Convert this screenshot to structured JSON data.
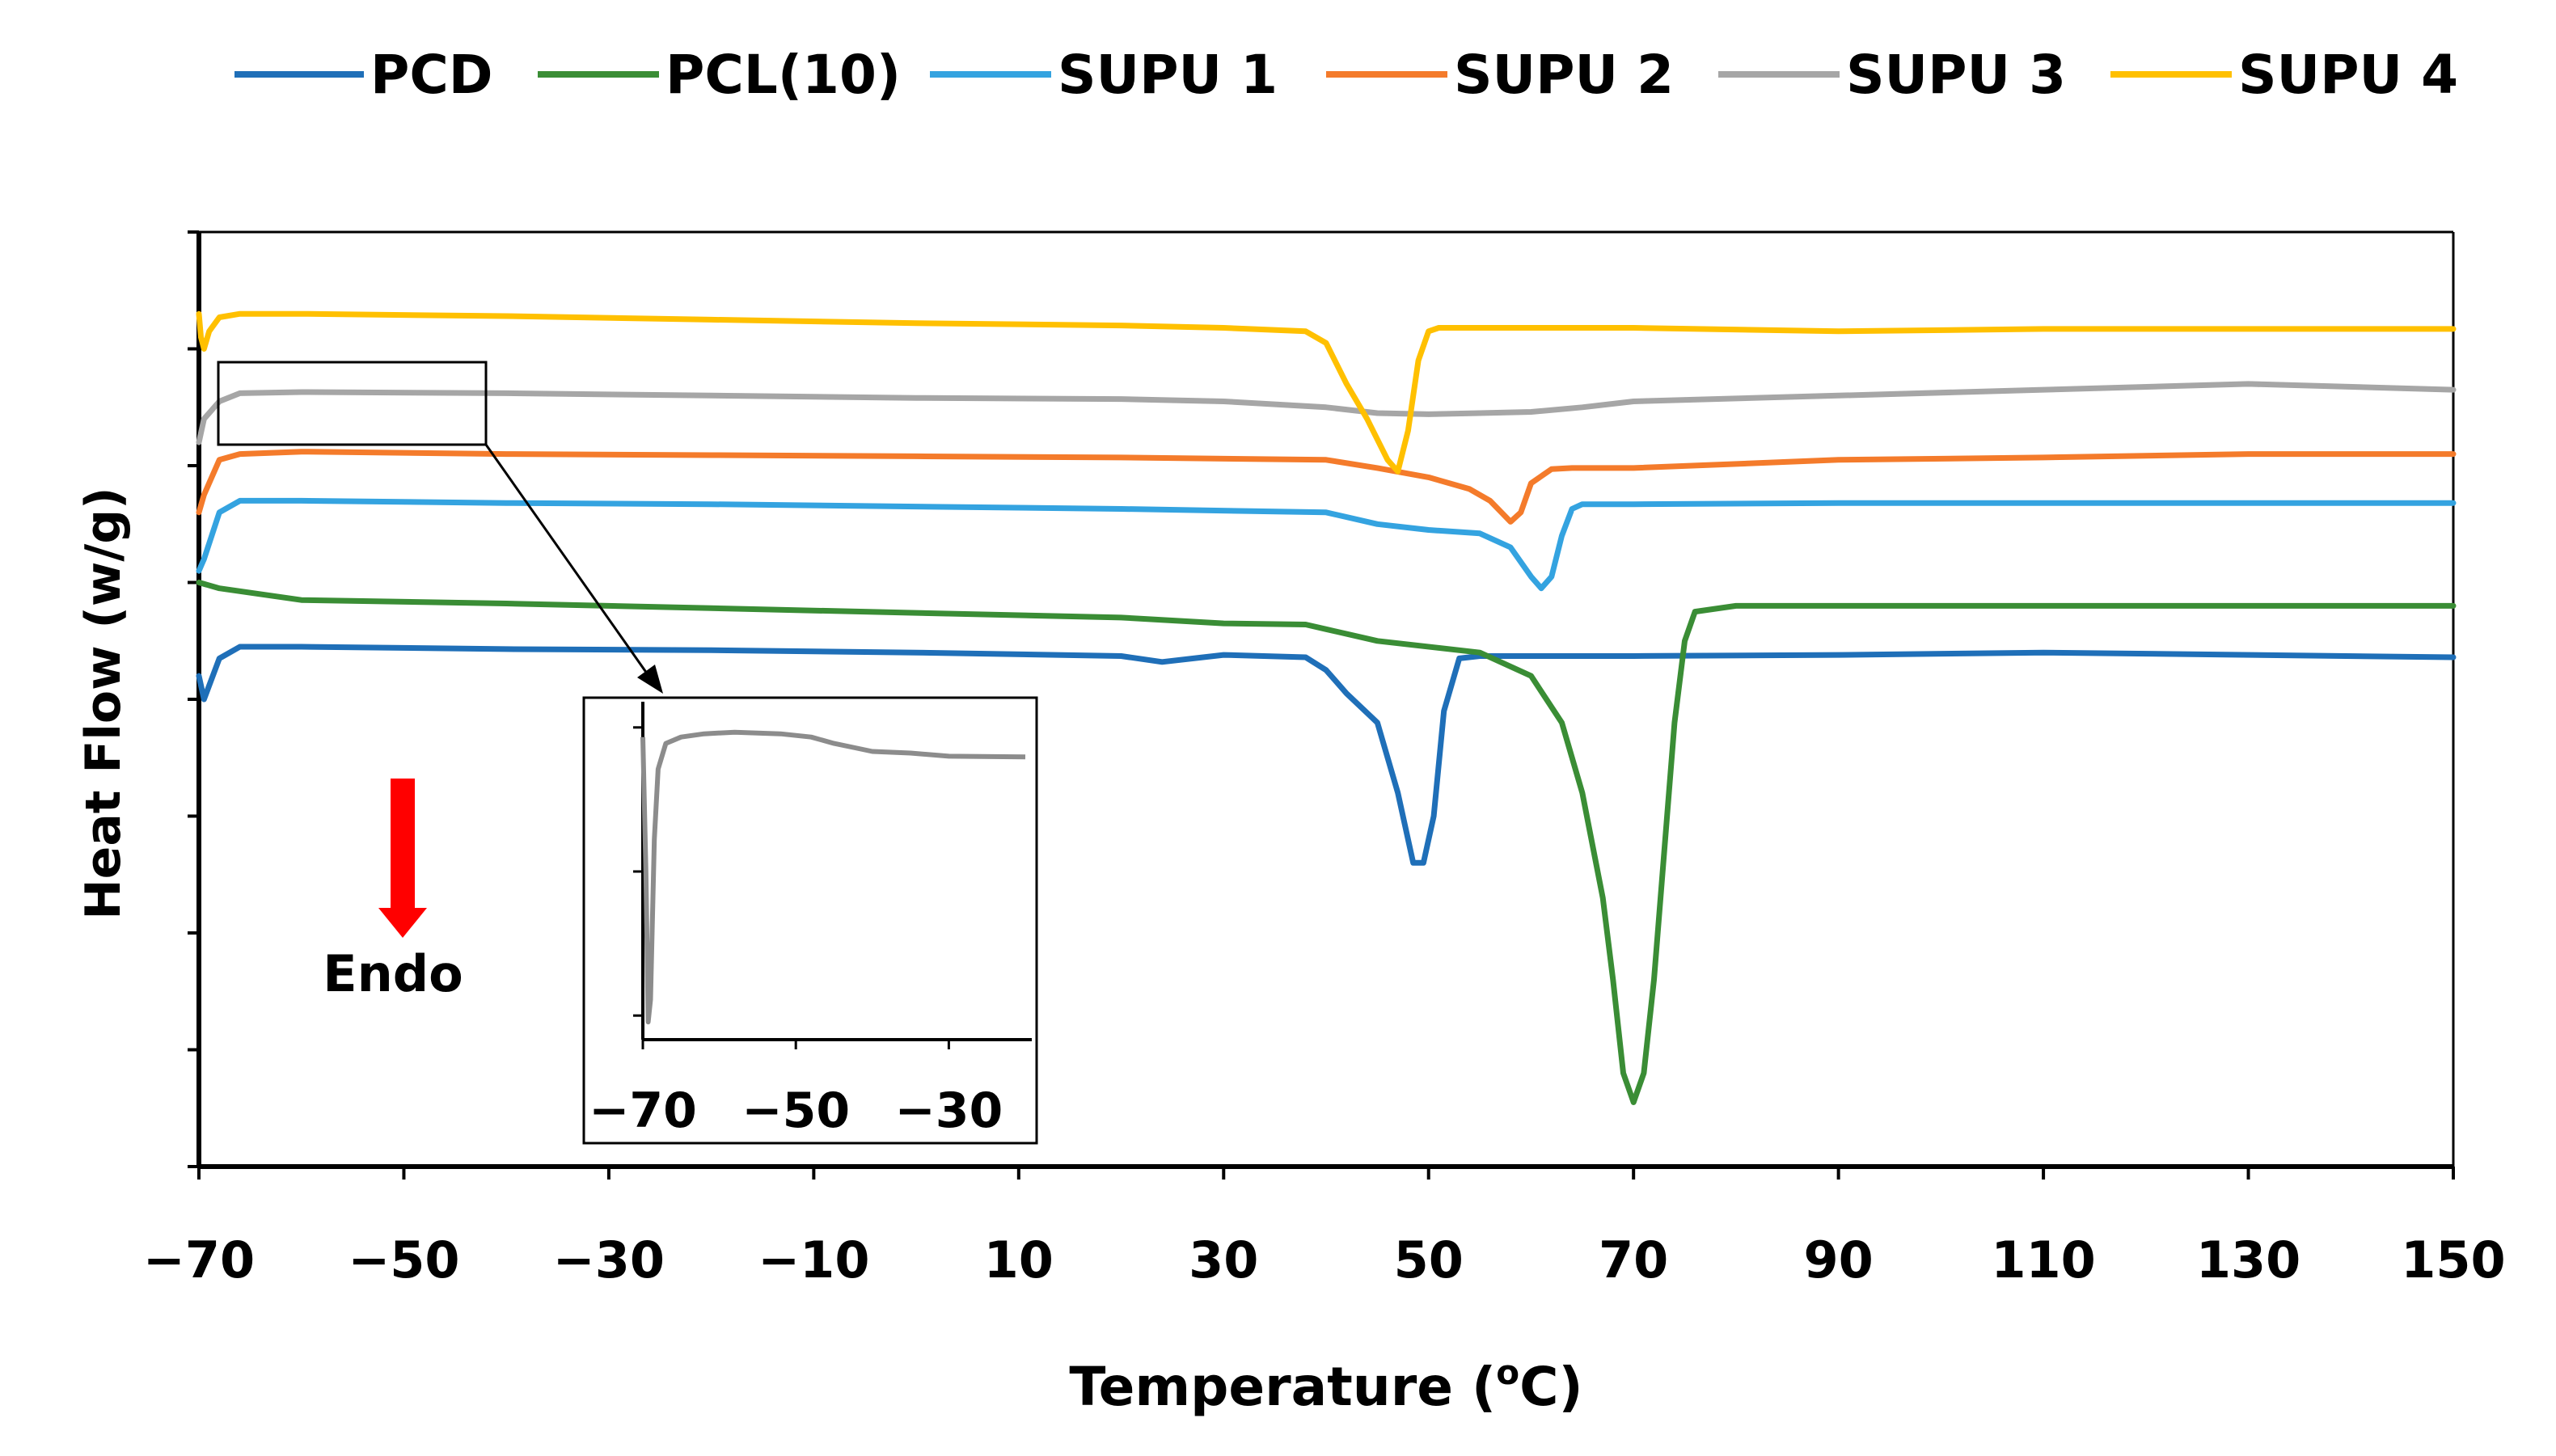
{
  "chart_data": {
    "type": "line",
    "title": "",
    "xlabel": "Temperature (",
    "xlabel_sup": "o",
    "xlabel_tail": "C)",
    "ylabel": "Heat Flow (w/g)",
    "xlim": [
      -70,
      150
    ],
    "ylim": [
      0,
      8
    ],
    "xticks": [
      -70,
      -50,
      -30,
      -10,
      10,
      30,
      50,
      70,
      90,
      110,
      130,
      150
    ],
    "xtick_labels": [
      "−70",
      "−50",
      "−30",
      "−10",
      "10",
      "30",
      "50",
      "70",
      "90",
      "110",
      "130",
      "150"
    ],
    "yticks": [
      0,
      1,
      2,
      3,
      4,
      5,
      6,
      7,
      8
    ],
    "grid": false,
    "legend_position": "top",
    "annotation": {
      "text": "Endo",
      "color": "#ff0000",
      "direction": "down"
    },
    "series": [
      {
        "name": "PCD",
        "color": "#1f6fb8",
        "x": [
          -70,
          -69.5,
          -68,
          -66,
          -60,
          -40,
          -20,
          0,
          20,
          24,
          28,
          30,
          38,
          40,
          42,
          45,
          47,
          48.5,
          49.5,
          50.5,
          51.5,
          53,
          55,
          70,
          90,
          110,
          150
        ],
        "y": [
          4.2,
          4.0,
          4.35,
          4.45,
          4.45,
          4.43,
          4.42,
          4.4,
          4.37,
          4.32,
          4.36,
          4.38,
          4.36,
          4.25,
          4.05,
          3.8,
          3.2,
          2.6,
          2.6,
          3.0,
          3.9,
          4.35,
          4.37,
          4.37,
          4.38,
          4.4,
          4.36
        ]
      },
      {
        "name": "PCL(10)",
        "color": "#3a8d35",
        "x": [
          -70,
          -68,
          -60,
          -40,
          -20,
          0,
          20,
          30,
          38,
          40,
          45,
          55,
          60,
          63,
          65,
          67,
          68,
          69,
          70,
          71,
          72,
          73,
          74,
          75,
          76,
          80,
          90,
          110,
          130,
          150
        ],
        "y": [
          5.0,
          4.95,
          4.85,
          4.82,
          4.78,
          4.74,
          4.7,
          4.65,
          4.64,
          4.6,
          4.5,
          4.4,
          4.2,
          3.8,
          3.2,
          2.3,
          1.6,
          0.8,
          0.55,
          0.8,
          1.6,
          2.7,
          3.8,
          4.5,
          4.75,
          4.8,
          4.8,
          4.8,
          4.8,
          4.8
        ]
      },
      {
        "name": "SUPU 1",
        "color": "#34a3e0",
        "x": [
          -70,
          -69.5,
          -68,
          -66,
          -60,
          -40,
          -20,
          0,
          20,
          40,
          45,
          50,
          55,
          58,
          60,
          61,
          62,
          63,
          64,
          65,
          70,
          90,
          110,
          130,
          150
        ],
        "y": [
          5.1,
          5.2,
          5.6,
          5.7,
          5.7,
          5.68,
          5.67,
          5.65,
          5.63,
          5.6,
          5.5,
          5.45,
          5.42,
          5.3,
          5.05,
          4.95,
          5.05,
          5.4,
          5.63,
          5.67,
          5.67,
          5.68,
          5.68,
          5.68,
          5.68
        ]
      },
      {
        "name": "SUPU 2",
        "color": "#f47b2b",
        "x": [
          -70,
          -69.5,
          -68,
          -66,
          -60,
          -40,
          -20,
          0,
          20,
          40,
          45,
          50,
          54,
          56,
          58,
          59,
          60,
          62,
          64,
          70,
          90,
          110,
          130,
          150
        ],
        "y": [
          5.6,
          5.75,
          6.05,
          6.1,
          6.12,
          6.1,
          6.09,
          6.08,
          6.07,
          6.05,
          5.98,
          5.9,
          5.8,
          5.7,
          5.52,
          5.6,
          5.85,
          5.97,
          5.98,
          5.98,
          6.05,
          6.07,
          6.1,
          6.1
        ]
      },
      {
        "name": "SUPU 3",
        "color": "#a6a6a6",
        "x": [
          -70,
          -69.5,
          -68,
          -66,
          -60,
          -40,
          -20,
          0,
          20,
          30,
          40,
          45,
          50,
          55,
          60,
          65,
          70,
          90,
          110,
          130,
          150
        ],
        "y": [
          6.2,
          6.4,
          6.55,
          6.62,
          6.63,
          6.62,
          6.6,
          6.58,
          6.57,
          6.55,
          6.5,
          6.45,
          6.44,
          6.45,
          6.46,
          6.5,
          6.55,
          6.6,
          6.65,
          6.7,
          6.65
        ]
      },
      {
        "name": "SUPU 4",
        "color": "#ffc000",
        "x": [
          -70,
          -69.8,
          -69.5,
          -69,
          -68,
          -66,
          -60,
          -40,
          -20,
          0,
          20,
          30,
          38,
          40,
          42,
          44,
          46,
          47,
          48,
          49,
          50,
          51,
          55,
          70,
          90,
          110,
          130,
          150
        ],
        "y": [
          7.3,
          7.1,
          7.0,
          7.15,
          7.27,
          7.3,
          7.3,
          7.28,
          7.25,
          7.22,
          7.2,
          7.18,
          7.15,
          7.05,
          6.7,
          6.4,
          6.05,
          5.95,
          6.3,
          6.9,
          7.15,
          7.18,
          7.18,
          7.18,
          7.15,
          7.17,
          7.17,
          7.17
        ]
      }
    ],
    "inset": {
      "xlim": [
        -70,
        -20
      ],
      "xticks": [
        -70,
        -50,
        -30
      ],
      "xtick_labels": [
        "−70",
        "−50",
        "−30"
      ],
      "series_name": "SUPU 3",
      "color": "#8c8c8c",
      "x": [
        -70,
        -69.6,
        -69.3,
        -69,
        -68.5,
        -68,
        -67,
        -65,
        -62,
        -58,
        -52,
        -48,
        -45,
        -42,
        -40,
        -35,
        -30,
        -20
      ],
      "y": [
        0.92,
        0.5,
        0.03,
        0.1,
        0.6,
        0.82,
        0.9,
        0.92,
        0.93,
        0.935,
        0.93,
        0.92,
        0.9,
        0.885,
        0.875,
        0.87,
        0.86,
        0.858
      ],
      "ylim": [
        0,
        1
      ]
    }
  }
}
